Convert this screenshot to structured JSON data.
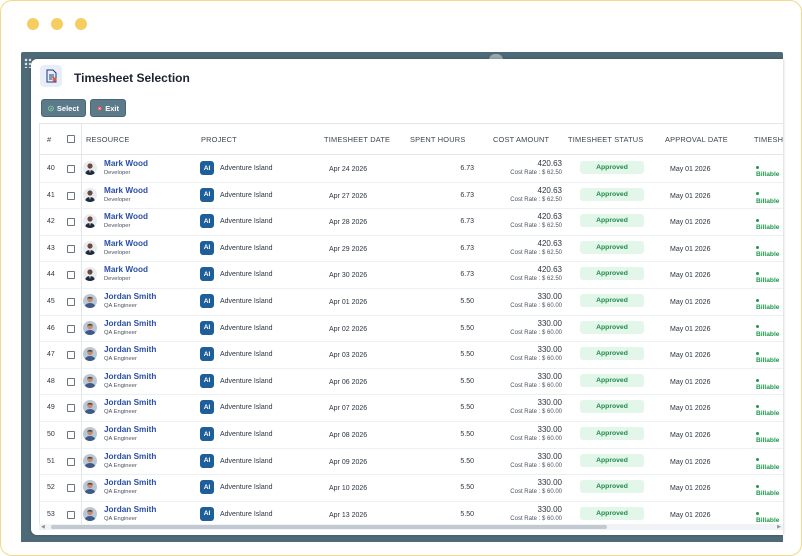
{
  "dialog": {
    "title": "Timesheet Selection",
    "icon": "timesheet-document-icon",
    "buttons": {
      "select": "Select",
      "exit": "Exit"
    }
  },
  "columns": {
    "number": "#",
    "resource": "RESOURCE",
    "project": "PROJECT",
    "timesheet_date": "TIMESHEET DATE",
    "spent_hours": "SPENT HOURS",
    "cost_amount": "COST AMOUNT",
    "timesheet_status": "TIMESHEET STATUS",
    "approval_date": "APPROVAL DATE",
    "timesheet_truncated": "TIMESH"
  },
  "colors": {
    "accent": "#2a4fa5",
    "toolbar": "#5b7a8a",
    "approved_bg": "#e3f6ea",
    "approved_text": "#1e8a48",
    "project_badge": "#1f5f99"
  },
  "rows": [
    {
      "num": "40",
      "name": "Mark Wood",
      "role": "Developer",
      "project_badge": "AI",
      "project": "Adventure Island",
      "date": "Apr 24 2026",
      "hours": "6.73",
      "amount": "420.63",
      "rate": "Cost Rate : $ 62.50",
      "status": "Approved",
      "approval": "May 01 2026",
      "billable": "Billable"
    },
    {
      "num": "41",
      "name": "Mark Wood",
      "role": "Developer",
      "project_badge": "AI",
      "project": "Adventure Island",
      "date": "Apr 27 2026",
      "hours": "6.73",
      "amount": "420.63",
      "rate": "Cost Rate : $ 62.50",
      "status": "Approved",
      "approval": "May 01 2026",
      "billable": "Billable"
    },
    {
      "num": "42",
      "name": "Mark Wood",
      "role": "Developer",
      "project_badge": "AI",
      "project": "Adventure Island",
      "date": "Apr 28 2026",
      "hours": "6.73",
      "amount": "420.63",
      "rate": "Cost Rate : $ 62.50",
      "status": "Approved",
      "approval": "May 01 2026",
      "billable": "Billable"
    },
    {
      "num": "43",
      "name": "Mark Wood",
      "role": "Developer",
      "project_badge": "AI",
      "project": "Adventure Island",
      "date": "Apr 29 2026",
      "hours": "6.73",
      "amount": "420.63",
      "rate": "Cost Rate : $ 62.50",
      "status": "Approved",
      "approval": "May 01 2026",
      "billable": "Billable"
    },
    {
      "num": "44",
      "name": "Mark Wood",
      "role": "Developer",
      "project_badge": "AI",
      "project": "Adventure Island",
      "date": "Apr 30 2026",
      "hours": "6.73",
      "amount": "420.63",
      "rate": "Cost Rate : $ 62.50",
      "status": "Approved",
      "approval": "May 01 2026",
      "billable": "Billable"
    },
    {
      "num": "45",
      "name": "Jordan Smith",
      "role": "QA Engineer",
      "project_badge": "AI",
      "project": "Adventure Island",
      "date": "Apr 01 2026",
      "hours": "5.50",
      "amount": "330.00",
      "rate": "Cost Rate : $ 60.00",
      "status": "Approved",
      "approval": "May 01 2026",
      "billable": "Billable"
    },
    {
      "num": "46",
      "name": "Jordan Smith",
      "role": "QA Engineer",
      "project_badge": "AI",
      "project": "Adventure Island",
      "date": "Apr 02 2026",
      "hours": "5.50",
      "amount": "330.00",
      "rate": "Cost Rate : $ 60.00",
      "status": "Approved",
      "approval": "May 01 2026",
      "billable": "Billable"
    },
    {
      "num": "47",
      "name": "Jordan Smith",
      "role": "QA Engineer",
      "project_badge": "AI",
      "project": "Adventure Island",
      "date": "Apr 03 2026",
      "hours": "5.50",
      "amount": "330.00",
      "rate": "Cost Rate : $ 60.00",
      "status": "Approved",
      "approval": "May 01 2026",
      "billable": "Billable"
    },
    {
      "num": "48",
      "name": "Jordan Smith",
      "role": "QA Engineer",
      "project_badge": "AI",
      "project": "Adventure Island",
      "date": "Apr 06 2026",
      "hours": "5.50",
      "amount": "330.00",
      "rate": "Cost Rate : $ 60.00",
      "status": "Approved",
      "approval": "May 01 2026",
      "billable": "Billable"
    },
    {
      "num": "49",
      "name": "Jordan Smith",
      "role": "QA Engineer",
      "project_badge": "AI",
      "project": "Adventure Island",
      "date": "Apr 07 2026",
      "hours": "5.50",
      "amount": "330.00",
      "rate": "Cost Rate : $ 60.00",
      "status": "Approved",
      "approval": "May 01 2026",
      "billable": "Billable"
    },
    {
      "num": "50",
      "name": "Jordan Smith",
      "role": "QA Engineer",
      "project_badge": "AI",
      "project": "Adventure Island",
      "date": "Apr 08 2026",
      "hours": "5.50",
      "amount": "330.00",
      "rate": "Cost Rate : $ 60.00",
      "status": "Approved",
      "approval": "May 01 2026",
      "billable": "Billable"
    },
    {
      "num": "51",
      "name": "Jordan Smith",
      "role": "QA Engineer",
      "project_badge": "AI",
      "project": "Adventure Island",
      "date": "Apr 09 2026",
      "hours": "5.50",
      "amount": "330.00",
      "rate": "Cost Rate : $ 60.00",
      "status": "Approved",
      "approval": "May 01 2026",
      "billable": "Billable"
    },
    {
      "num": "52",
      "name": "Jordan Smith",
      "role": "QA Engineer",
      "project_badge": "AI",
      "project": "Adventure Island",
      "date": "Apr 10 2026",
      "hours": "5.50",
      "amount": "330.00",
      "rate": "Cost Rate : $ 60.00",
      "status": "Approved",
      "approval": "May 01 2026",
      "billable": "Billable"
    },
    {
      "num": "53",
      "name": "Jordan Smith",
      "role": "QA Engineer",
      "project_badge": "AI",
      "project": "Adventure Island",
      "date": "Apr 13 2026",
      "hours": "5.50",
      "amount": "330.00",
      "rate": "Cost Rate : $ 60.00",
      "status": "Approved",
      "approval": "May 01 2026",
      "billable": "Billable"
    }
  ]
}
